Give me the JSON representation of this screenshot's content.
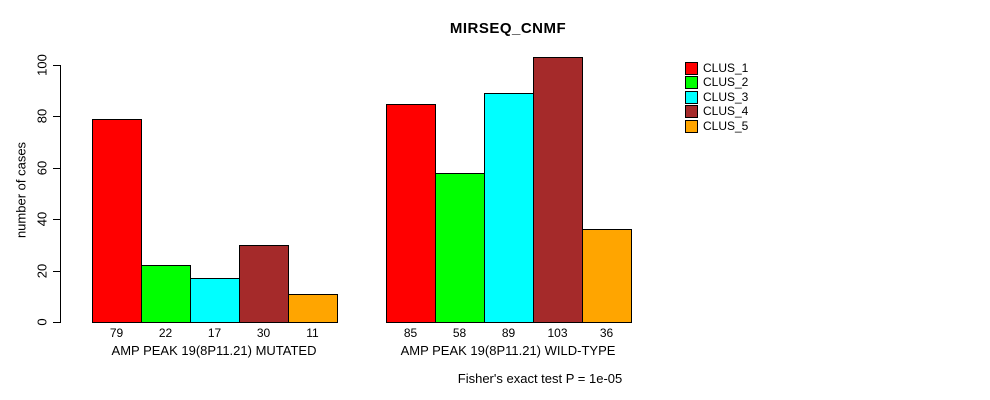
{
  "chart_data": {
    "type": "bar",
    "title": "MIRSEQ_CNMF",
    "ylabel": "number of cases",
    "xlabel": "",
    "ylim": [
      0,
      103
    ],
    "yticks": [
      0,
      20,
      40,
      60,
      80,
      100
    ],
    "grid": false,
    "legend_position": "top-right",
    "categories": [
      "AMP PEAK 19(8P11.21) MUTATED",
      "AMP PEAK 19(8P11.21) WILD-TYPE"
    ],
    "groups": [
      {
        "label": "AMP PEAK 19(8P11.21) MUTATED",
        "values": [
          79,
          22,
          17,
          30,
          11
        ]
      },
      {
        "label": "AMP PEAK 19(8P11.21) WILD-TYPE",
        "values": [
          85,
          58,
          89,
          103,
          36
        ]
      }
    ],
    "series": [
      {
        "name": "CLUS_1",
        "color": "#FF0000",
        "values": [
          79,
          85
        ]
      },
      {
        "name": "CLUS_2",
        "color": "#00FF00",
        "values": [
          22,
          58
        ]
      },
      {
        "name": "CLUS_3",
        "color": "#00FFFF",
        "values": [
          17,
          89
        ]
      },
      {
        "name": "CLUS_4",
        "color": "#A52A2A",
        "values": [
          30,
          103
        ]
      },
      {
        "name": "CLUS_5",
        "color": "#FFA500",
        "values": [
          11,
          36
        ]
      }
    ],
    "caption": "Fisher's exact test P = 1e-05"
  }
}
